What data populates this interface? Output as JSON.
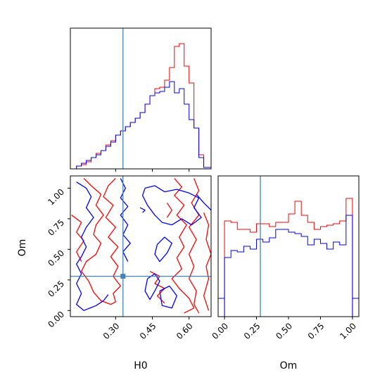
{
  "chart_data": {
    "type": "corner",
    "colors": {
      "series_a": "#ff0000",
      "series_b": "#0000ff",
      "truth": "#4682b4"
    },
    "truth": {
      "H0": 0.33,
      "Om": 0.28
    },
    "panels": [
      {
        "id": "hist-h0",
        "type": "step-histogram",
        "variable": "H0",
        "xlim": [
          0.115,
          0.69
        ],
        "ylim": [
          0,
          1.0
        ],
        "bin_edges": [
          0.115,
          0.14,
          0.16,
          0.18,
          0.2,
          0.22,
          0.24,
          0.26,
          0.28,
          0.3,
          0.32,
          0.34,
          0.36,
          0.38,
          0.4,
          0.42,
          0.44,
          0.46,
          0.48,
          0.5,
          0.52,
          0.54,
          0.56,
          0.58,
          0.6,
          0.62,
          0.64,
          0.66,
          0.69
        ],
        "series": [
          {
            "color_key": "series_a",
            "values": [
              0.0,
              0.02,
              0.03,
              0.05,
              0.08,
              0.11,
              0.13,
              0.17,
              0.2,
              0.24,
              0.27,
              0.3,
              0.33,
              0.36,
              0.4,
              0.46,
              0.52,
              0.57,
              0.58,
              0.63,
              0.72,
              0.87,
              0.89,
              0.73,
              0.61,
              0.29,
              0.1,
              0.01
            ]
          },
          {
            "color_key": "series_b",
            "values": [
              0.0,
              0.02,
              0.04,
              0.06,
              0.08,
              0.1,
              0.13,
              0.16,
              0.19,
              0.24,
              0.27,
              0.3,
              0.33,
              0.36,
              0.4,
              0.46,
              0.52,
              0.54,
              0.55,
              0.58,
              0.62,
              0.54,
              0.57,
              0.46,
              0.35,
              0.29,
              0.08,
              0.01
            ]
          }
        ]
      },
      {
        "id": "hist-om",
        "type": "step-histogram",
        "variable": "Om",
        "xlim": [
          -0.05,
          1.05
        ],
        "ylim": [
          0,
          1.0
        ],
        "bin_edges": [
          0.0,
          0.05,
          0.1,
          0.15,
          0.2,
          0.25,
          0.3,
          0.35,
          0.4,
          0.45,
          0.5,
          0.55,
          0.6,
          0.65,
          0.7,
          0.75,
          0.8,
          0.85,
          0.9,
          0.95,
          1.0
        ],
        "series": [
          {
            "color_key": "series_a",
            "values": [
              0.68,
              0.67,
              0.62,
              0.62,
              0.6,
              0.66,
              0.66,
              0.64,
              0.67,
              0.67,
              0.73,
              0.82,
              0.72,
              0.67,
              0.62,
              0.64,
              0.65,
              0.66,
              0.68,
              0.84
            ]
          },
          {
            "color_key": "series_b",
            "values": [
              0.42,
              0.47,
              0.46,
              0.5,
              0.48,
              0.55,
              0.53,
              0.56,
              0.62,
              0.62,
              0.6,
              0.59,
              0.57,
              0.51,
              0.55,
              0.52,
              0.48,
              0.53,
              0.51,
              0.72
            ]
          }
        ]
      },
      {
        "id": "contour-h0-om",
        "type": "contour",
        "x_variable": "H0",
        "y_variable": "Om",
        "xlim": [
          0.115,
          0.69
        ],
        "ylim": [
          -0.05,
          1.1
        ],
        "series": [
          {
            "color_key": "series_a",
            "paths": [
              [
                [
                  0.17,
                  1.08
                ],
                [
                  0.2,
                  1.02
                ],
                [
                  0.24,
                  0.95
                ],
                [
                  0.22,
                  0.86
                ],
                [
                  0.25,
                  0.78
                ],
                [
                  0.22,
                  0.7
                ],
                [
                  0.21,
                  0.62
                ],
                [
                  0.24,
                  0.55
                ],
                [
                  0.22,
                  0.46
                ],
                [
                  0.18,
                  0.4
                ],
                [
                  0.16,
                  0.32
                ],
                [
                  0.19,
                  0.24
                ],
                [
                  0.21,
                  0.15
                ],
                [
                  0.24,
                  0.08
                ],
                [
                  0.28,
                  0.05
                ],
                [
                  0.3,
                  0.07
                ],
                [
                  0.29,
                  0.14
                ],
                [
                  0.32,
                  0.2
                ],
                [
                  0.29,
                  0.28
                ],
                [
                  0.31,
                  0.36
                ],
                [
                  0.28,
                  0.44
                ],
                [
                  0.31,
                  0.52
                ],
                [
                  0.27,
                  0.6
                ],
                [
                  0.3,
                  0.68
                ],
                [
                  0.26,
                  0.76
                ],
                [
                  0.29,
                  0.86
                ],
                [
                  0.25,
                  0.93
                ],
                [
                  0.27,
                  1.02
                ],
                [
                  0.3,
                  1.08
                ]
              ],
              [
                [
                  0.12,
                  0.78
                ],
                [
                  0.16,
                  0.72
                ],
                [
                  0.14,
                  0.64
                ],
                [
                  0.17,
                  0.57
                ],
                [
                  0.14,
                  0.48
                ],
                [
                  0.16,
                  0.4
                ]
              ],
              [
                [
                  0.54,
                  1.08
                ],
                [
                  0.57,
                  1.01
                ],
                [
                  0.54,
                  0.94
                ],
                [
                  0.58,
                  0.86
                ],
                [
                  0.55,
                  0.78
                ],
                [
                  0.59,
                  0.7
                ],
                [
                  0.56,
                  0.6
                ],
                [
                  0.58,
                  0.52
                ],
                [
                  0.55,
                  0.43
                ],
                [
                  0.57,
                  0.34
                ],
                [
                  0.53,
                  0.26
                ],
                [
                  0.56,
                  0.18
                ],
                [
                  0.6,
                  0.1
                ],
                [
                  0.62,
                  0.02
                ],
                [
                  0.58,
                  -0.02
                ]
              ],
              [
                [
                  0.62,
                  1.08
                ],
                [
                  0.64,
                  0.98
                ],
                [
                  0.61,
                  0.88
                ],
                [
                  0.64,
                  0.78
                ],
                [
                  0.6,
                  0.68
                ],
                [
                  0.63,
                  0.58
                ],
                [
                  0.6,
                  0.46
                ],
                [
                  0.62,
                  0.36
                ],
                [
                  0.6,
                  0.26
                ],
                [
                  0.63,
                  0.16
                ],
                [
                  0.62,
                  0.05
                ],
                [
                  0.64,
                  -0.02
                ]
              ],
              [
                [
                  0.66,
                  0.8
                ],
                [
                  0.68,
                  0.7
                ],
                [
                  0.67,
                  0.58
                ],
                [
                  0.69,
                  0.46
                ],
                [
                  0.67,
                  0.36
                ],
                [
                  0.68,
                  0.26
                ],
                [
                  0.66,
                  0.12
                ],
                [
                  0.68,
                  0.0
                ]
              ],
              [
                [
                  0.44,
                  0.32
                ],
                [
                  0.48,
                  0.28
                ],
                [
                  0.46,
                  0.22
                ],
                [
                  0.5,
                  0.18
                ],
                [
                  0.47,
                  0.12
                ],
                [
                  0.5,
                  0.06
                ]
              ],
              [
                [
                  0.51,
                  0.76
                ],
                [
                  0.53,
                  0.82
                ],
                [
                  0.51,
                  0.88
                ]
              ]
            ]
          },
          {
            "color_key": "series_b",
            "paths": [
              [
                [
                  0.14,
                  1.05
                ],
                [
                  0.18,
                  1.0
                ],
                [
                  0.2,
                  0.93
                ],
                [
                  0.18,
                  0.84
                ],
                [
                  0.21,
                  0.76
                ],
                [
                  0.18,
                  0.68
                ],
                [
                  0.16,
                  0.6
                ],
                [
                  0.18,
                  0.52
                ],
                [
                  0.16,
                  0.44
                ],
                [
                  0.14,
                  0.38
                ],
                [
                  0.16,
                  0.3
                ],
                [
                  0.14,
                  0.22
                ],
                [
                  0.16,
                  0.14
                ],
                [
                  0.14,
                  0.05
                ],
                [
                  0.17,
                  0.0
                ],
                [
                  0.22,
                  0.04
                ],
                [
                  0.25,
                  0.08
                ],
                [
                  0.27,
                  0.13
                ]
              ],
              [
                [
                  0.32,
                  1.08
                ],
                [
                  0.34,
                  1.0
                ],
                [
                  0.32,
                  0.92
                ],
                [
                  0.35,
                  0.85
                ],
                [
                  0.32,
                  0.78
                ],
                [
                  0.35,
                  0.7
                ],
                [
                  0.33,
                  0.62
                ],
                [
                  0.36,
                  0.55
                ],
                [
                  0.33,
                  0.48
                ],
                [
                  0.35,
                  0.4
                ]
              ],
              [
                [
                  0.42,
                  1.0
                ],
                [
                  0.46,
                  1.02
                ],
                [
                  0.5,
                  0.97
                ],
                [
                  0.55,
                  0.99
                ],
                [
                  0.6,
                  0.96
                ],
                [
                  0.64,
                  0.92
                ],
                [
                  0.62,
                  0.84
                ],
                [
                  0.65,
                  0.76
                ],
                [
                  0.61,
                  0.7
                ],
                [
                  0.57,
                  0.75
                ],
                [
                  0.53,
                  0.7
                ],
                [
                  0.49,
                  0.72
                ],
                [
                  0.46,
                  0.78
                ],
                [
                  0.43,
                  0.86
                ],
                [
                  0.41,
                  0.94
                ],
                [
                  0.42,
                  1.0
                ]
              ],
              [
                [
                  0.47,
                  0.54
                ],
                [
                  0.5,
                  0.6
                ],
                [
                  0.53,
                  0.55
                ],
                [
                  0.51,
                  0.47
                ],
                [
                  0.48,
                  0.4
                ],
                [
                  0.46,
                  0.46
                ],
                [
                  0.47,
                  0.54
                ]
              ],
              [
                [
                  0.43,
                  0.26
                ],
                [
                  0.46,
                  0.3
                ],
                [
                  0.48,
                  0.24
                ],
                [
                  0.46,
                  0.16
                ],
                [
                  0.44,
                  0.09
                ],
                [
                  0.42,
                  0.16
                ],
                [
                  0.43,
                  0.26
                ]
              ],
              [
                [
                  0.48,
                  0.16
                ],
                [
                  0.52,
                  0.2
                ],
                [
                  0.55,
                  0.12
                ],
                [
                  0.53,
                  0.02
                ],
                [
                  0.49,
                  0.04
                ],
                [
                  0.48,
                  0.16
                ]
              ],
              [
                [
                  0.63,
                  0.95
                ],
                [
                  0.66,
                  0.88
                ],
                [
                  0.69,
                  0.82
                ]
              ],
              [
                [
                  0.4,
                  0.84
                ],
                [
                  0.42,
                  0.82
                ],
                [
                  0.41,
                  0.8
                ]
              ]
            ]
          }
        ]
      }
    ],
    "h0_hist_xticks": [
      0.3,
      0.45,
      0.6
    ],
    "contour_xticks": [
      0.3,
      0.45,
      0.6
    ],
    "contour_xtick_labels": [
      "0.30",
      "0.45",
      "0.60"
    ],
    "contour_yticks": [
      0.0,
      0.25,
      0.5,
      0.75,
      1.0
    ],
    "contour_ytick_labels": [
      "0.00",
      "0.25",
      "0.50",
      "0.75",
      "1.00"
    ],
    "om_xticks": [
      0.0,
      0.25,
      0.5,
      0.75,
      1.0
    ],
    "om_xtick_labels": [
      "0.00",
      "0.25",
      "0.50",
      "0.75",
      "1.00"
    ],
    "xlabel_h0": "H0",
    "xlabel_om": "Om",
    "ylabel_om": "Om"
  }
}
